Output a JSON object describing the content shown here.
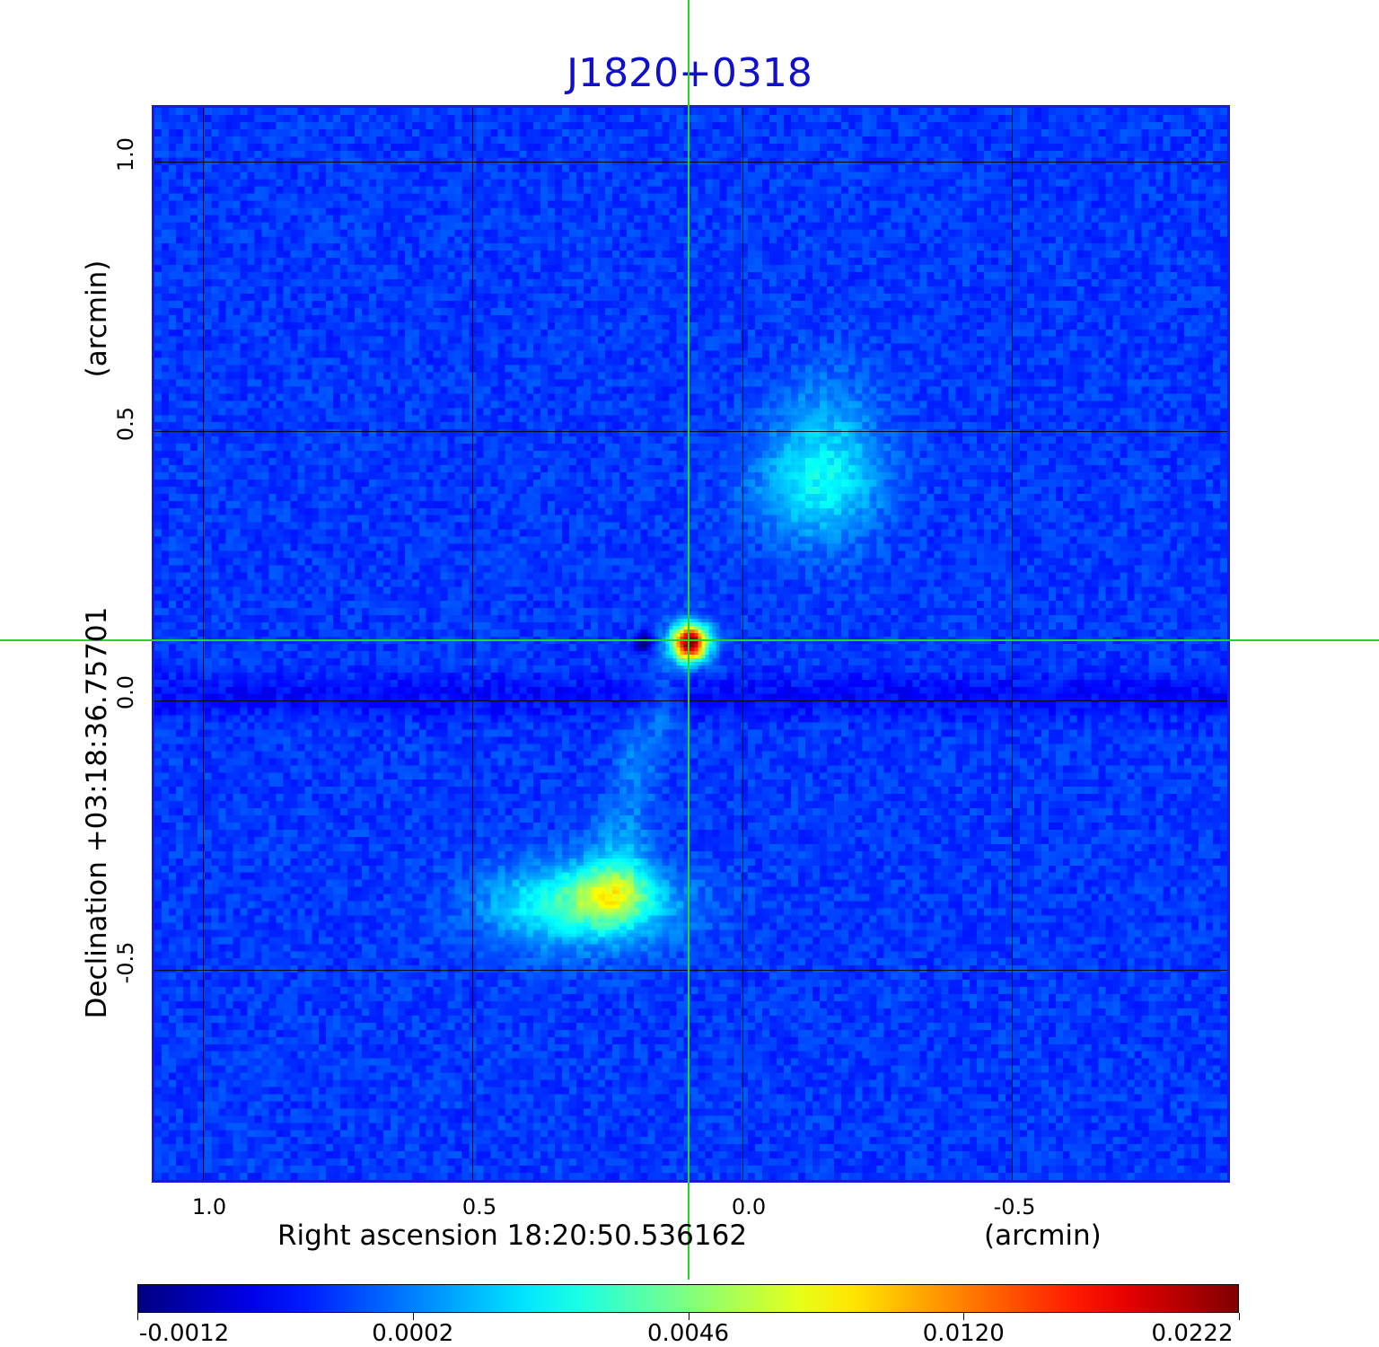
{
  "chart_data": {
    "type": "heatmap",
    "title": "J1820+0318",
    "xlabel": "Right ascension  18:20:50.536162",
    "xunit": "(arcmin)",
    "ylabel": "Declination  +03:18:36.75701",
    "yunit": "(arcmin)",
    "x_ticks": [
      "1.0",
      "0.5",
      "0.0",
      "-0.5"
    ],
    "y_ticks": [
      "1.0",
      "0.5",
      "0.0",
      "-0.5"
    ],
    "x_tick_values": [
      1.0,
      0.5,
      0.0,
      -0.5
    ],
    "y_tick_values": [
      1.0,
      0.5,
      0.0,
      -0.5
    ],
    "xlim": [
      1.095,
      -0.905
    ],
    "ylim": [
      -0.895,
      1.105
    ],
    "grid": true,
    "colormap": "jet",
    "colorbar_ticks": [
      "-0.0012",
      "0.0002",
      "0.0046",
      "0.0120",
      "0.0222"
    ],
    "colorbar_range": [
      -0.0012,
      0.0222
    ],
    "crosshair": [
      0.1,
      0.112
    ],
    "features": [
      {
        "name": "core",
        "x": 0.1,
        "y": 0.11,
        "value": 0.022
      },
      {
        "name": "northwest lobe",
        "x": -0.15,
        "y": 0.45,
        "value": 0.004
      },
      {
        "name": "southeast lobe",
        "x": 0.3,
        "y": -0.38,
        "value": 0.009
      },
      {
        "name": "jet",
        "x": 0.2,
        "y": -0.12,
        "value": 0.002
      }
    ]
  },
  "colors": {
    "title": "#1010cc",
    "frame": "#1a1ad8",
    "crosshair": "#22d822",
    "grid": "#000000"
  }
}
